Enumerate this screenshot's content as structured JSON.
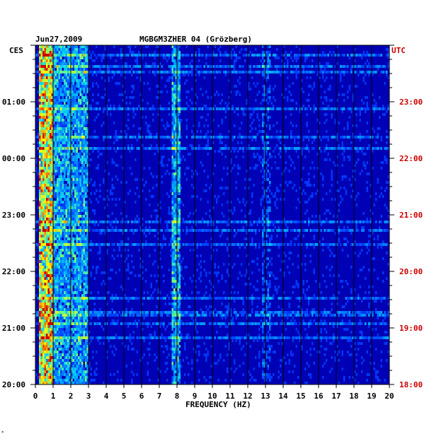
{
  "header": {
    "date": "Jun27,2009",
    "station": "MGBGM3ZHER 04 (Grözberg)"
  },
  "footnote": "*",
  "chart_data": {
    "type": "heatmap",
    "title": "",
    "xlabel": "FREQUENCY (HZ)",
    "ylabel_left": "CES",
    "ylabel_right": "UTC",
    "xlim": [
      0,
      20
    ],
    "x_ticks": [
      "0",
      "1",
      "2",
      "3",
      "4",
      "5",
      "6",
      "7",
      "8",
      "9",
      "10",
      "11",
      "12",
      "13",
      "14",
      "15",
      "16",
      "17",
      "18",
      "19",
      "20"
    ],
    "left_ticks": [
      "01:00",
      "00:00",
      "23:00",
      "22:00",
      "21:00",
      "20:00"
    ],
    "right_ticks": [
      "23:00",
      "22:00",
      "21:00",
      "20:00",
      "19:00",
      "18:00"
    ],
    "colors": {
      "background": "#0000b4",
      "axis": "#000000",
      "right_labels": "#cc0000",
      "grid": "#000000"
    },
    "energy_bands_hz": [
      {
        "from": 0.2,
        "to": 1.0,
        "level": "high"
      },
      {
        "from": 1.0,
        "to": 3.0,
        "level": "medium"
      },
      {
        "from": 7.7,
        "to": 8.2,
        "level": "medium"
      },
      {
        "from": 12.8,
        "to": 13.3,
        "level": "low"
      }
    ],
    "grid": true
  }
}
